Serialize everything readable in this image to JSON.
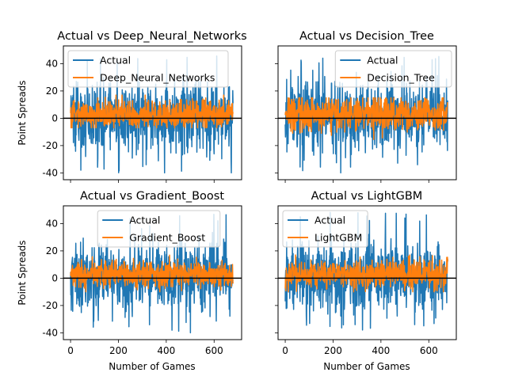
{
  "chart_data": [
    {
      "type": "line",
      "title": "Actual vs Deep_Neural_Networks",
      "xlabel": "",
      "ylabel": "Point Spreads",
      "xlim": [
        -30,
        715
      ],
      "ylim": [
        -45,
        53
      ],
      "xticks": [
        0,
        200,
        400,
        600
      ],
      "yticks": [
        -40,
        -20,
        0,
        20,
        40
      ],
      "show_xticklabels": false,
      "show_yticklabels": true,
      "legend": "upper-left",
      "hline": 0,
      "n_points": 680,
      "series": [
        {
          "name": "Actual",
          "color": "#1f77b4",
          "min": -40,
          "max": 49,
          "spread": 13
        },
        {
          "name": "Deep_Neural_Networks",
          "color": "#ff7f0e",
          "min": -7,
          "max": 17,
          "spread": 5
        }
      ]
    },
    {
      "type": "line",
      "title": "Actual vs Decision_Tree",
      "xlabel": "",
      "ylabel": "",
      "xlim": [
        -30,
        715
      ],
      "ylim": [
        -45,
        53
      ],
      "xticks": [
        0,
        200,
        400,
        600
      ],
      "yticks": [
        -40,
        -20,
        0,
        20,
        40
      ],
      "show_xticklabels": false,
      "show_yticklabels": false,
      "legend": "upper-right",
      "hline": 0,
      "n_points": 680,
      "series": [
        {
          "name": "Actual",
          "color": "#1f77b4",
          "min": -40,
          "max": 49,
          "spread": 13
        },
        {
          "name": "Decision_Tree",
          "color": "#ff7f0e",
          "min": -16,
          "max": 15,
          "spread": 6
        }
      ]
    },
    {
      "type": "line",
      "title": "Actual vs Gradient_Boost",
      "xlabel": "Number of Games",
      "ylabel": "Point Spreads",
      "xlim": [
        -30,
        715
      ],
      "ylim": [
        -45,
        53
      ],
      "xticks": [
        0,
        200,
        400,
        600
      ],
      "yticks": [
        -40,
        -20,
        0,
        20,
        40
      ],
      "show_xticklabels": true,
      "show_yticklabels": true,
      "legend": "upper-center",
      "hline": 0,
      "n_points": 680,
      "series": [
        {
          "name": "Actual",
          "color": "#1f77b4",
          "min": -40,
          "max": 49,
          "spread": 13
        },
        {
          "name": "Gradient_Boost",
          "color": "#ff7f0e",
          "min": -10,
          "max": 17,
          "spread": 5
        }
      ]
    },
    {
      "type": "line",
      "title": "Actual vs LightGBM",
      "xlabel": "Number of Games",
      "ylabel": "",
      "xlim": [
        -30,
        715
      ],
      "ylim": [
        -45,
        53
      ],
      "xticks": [
        0,
        200,
        400,
        600
      ],
      "yticks": [
        -40,
        -20,
        0,
        20,
        40
      ],
      "show_xticklabels": true,
      "show_yticklabels": false,
      "legend": "upper-left",
      "hline": 0,
      "n_points": 680,
      "series": [
        {
          "name": "Actual",
          "color": "#1f77b4",
          "min": -40,
          "max": 49,
          "spread": 13
        },
        {
          "name": "LightGBM",
          "color": "#ff7f0e",
          "min": -10,
          "max": 17,
          "spread": 5
        }
      ]
    }
  ]
}
